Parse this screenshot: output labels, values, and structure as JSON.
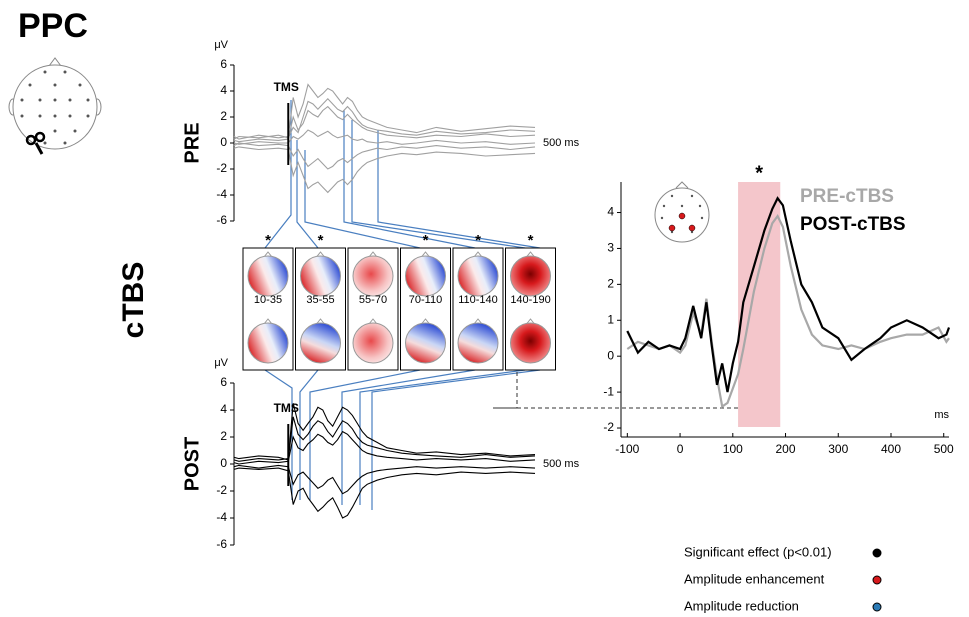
{
  "panel_label": "PPC",
  "condition_label": "cTBS",
  "topomaps": [
    {
      "window": "10-35",
      "significance": "*"
    },
    {
      "window": "35-55",
      "significance": "*"
    },
    {
      "window": "55-70"
    },
    {
      "window": "70-110",
      "significance": "*"
    },
    {
      "window": "110-140",
      "significance": "*"
    },
    {
      "window": "140-190",
      "significance": "*"
    }
  ],
  "legend": [
    {
      "label": "Significant effect (p<0.01)",
      "color": "#000000"
    },
    {
      "label": "Amplitude enhancement",
      "color": "#d7191c"
    },
    {
      "label": "Amplitude reduction",
      "color": "#2c7bb6"
    }
  ],
  "chart_data": [
    {
      "type": "line",
      "label": "PRE",
      "ylabel": "μV",
      "xlabel": "500 ms",
      "color": "#a0a0a0",
      "annotation": {
        "text": "TMS",
        "x": 0
      },
      "xlim": [
        -110,
        500
      ],
      "ylim": [
        -6,
        6
      ],
      "yticks": [
        -6,
        -4,
        -2,
        0,
        2,
        4,
        6
      ],
      "x": [
        -110,
        -100,
        -60,
        -20,
        0,
        10,
        20,
        30,
        40,
        50,
        60,
        70,
        80,
        90,
        100,
        110,
        120,
        130,
        140,
        150,
        160,
        180,
        200,
        230,
        260,
        300,
        350,
        400,
        450,
        500
      ],
      "series": [
        {
          "values": [
            0.5,
            0.3,
            0.6,
            0.4,
            0.5,
            3.5,
            2.0,
            3.0,
            4.5,
            4.0,
            3.5,
            3.8,
            4.2,
            4.0,
            3.5,
            3.0,
            3.5,
            3.2,
            2.5,
            2.0,
            1.8,
            1.5,
            1.2,
            1.0,
            0.8,
            1.2,
            0.9,
            1.1,
            1.3,
            1.2
          ]
        },
        {
          "values": [
            0.2,
            0.1,
            0.3,
            0.2,
            0.3,
            2.0,
            1.0,
            1.5,
            2.5,
            2.2,
            2.0,
            2.5,
            2.8,
            2.4,
            2.0,
            1.8,
            2.2,
            1.8,
            1.5,
            1.2,
            1.0,
            0.8,
            0.6,
            0.5,
            0.4,
            0.6,
            0.5,
            0.7,
            0.5,
            0.6
          ]
        },
        {
          "values": [
            0.0,
            -0.1,
            0.1,
            0.0,
            0.0,
            0.5,
            0.3,
            0.6,
            1.0,
            0.8,
            0.5,
            0.7,
            0.9,
            0.6,
            0.4,
            0.5,
            0.6,
            0.3,
            0.2,
            0.3,
            0.1,
            0.0,
            0.1,
            -0.1,
            0.0,
            0.2,
            0.0,
            0.1,
            -0.1,
            0.0
          ]
        },
        {
          "values": [
            -0.2,
            0.0,
            -0.2,
            -0.1,
            -0.2,
            -1.0,
            -0.5,
            -1.2,
            -1.8,
            -1.5,
            -1.2,
            -1.6,
            -2.0,
            -1.8,
            -1.4,
            -1.2,
            -1.5,
            -1.2,
            -0.9,
            -0.7,
            -0.6,
            -0.4,
            -0.5,
            -0.3,
            -0.4,
            -0.2,
            -0.4,
            -0.3,
            -0.5,
            -0.3
          ]
        },
        {
          "values": [
            -0.4,
            -0.3,
            -0.5,
            -0.4,
            -0.5,
            -2.5,
            -1.5,
            -2.5,
            -3.5,
            -3.2,
            -3.0,
            -3.4,
            -3.8,
            -3.4,
            -3.0,
            -2.8,
            -3.2,
            -2.8,
            -2.2,
            -1.8,
            -1.5,
            -1.2,
            -1.0,
            -0.8,
            -0.9,
            -0.7,
            -0.8,
            -1.0,
            -0.9,
            -0.8
          ]
        },
        {
          "values": [
            0.3,
            0.5,
            0.4,
            0.6,
            0.4,
            1.2,
            0.8,
            2.0,
            3.2,
            3.0,
            2.6,
            3.0,
            3.4,
            3.0,
            2.6,
            2.4,
            2.8,
            2.4,
            1.8,
            1.4,
            1.2,
            1.0,
            0.9,
            0.7,
            0.6,
            0.9,
            0.7,
            0.8,
            1.0,
            0.9
          ]
        }
      ]
    },
    {
      "type": "line",
      "label": "POST",
      "ylabel": "μV",
      "xlabel": "500 ms",
      "color": "#000000",
      "annotation": {
        "text": "TMS",
        "x": 0
      },
      "xlim": [
        -110,
        500
      ],
      "ylim": [
        -6,
        6
      ],
      "yticks": [
        -6,
        -4,
        -2,
        0,
        2,
        4,
        6
      ],
      "x": [
        -110,
        -100,
        -60,
        -20,
        0,
        10,
        20,
        30,
        40,
        50,
        60,
        70,
        80,
        90,
        100,
        110,
        120,
        130,
        140,
        150,
        160,
        180,
        200,
        230,
        260,
        300,
        350,
        400,
        450,
        500
      ],
      "series": [
        {
          "values": [
            0.3,
            0.2,
            0.4,
            0.3,
            0.4,
            4.5,
            3.0,
            2.5,
            3.0,
            3.5,
            4.2,
            4.0,
            3.2,
            2.8,
            3.5,
            4.2,
            4.0,
            3.6,
            3.0,
            2.4,
            2.0,
            1.6,
            1.2,
            1.0,
            0.8,
            0.9,
            0.7,
            0.8,
            0.6,
            0.7
          ]
        },
        {
          "values": [
            0.1,
            0.0,
            0.2,
            0.1,
            0.2,
            2.0,
            1.2,
            1.0,
            1.5,
            1.8,
            2.2,
            2.0,
            1.6,
            1.4,
            1.8,
            2.4,
            2.2,
            1.8,
            1.4,
            1.0,
            0.8,
            0.6,
            0.5,
            0.4,
            0.3,
            0.4,
            0.3,
            0.4,
            0.2,
            0.3
          ]
        },
        {
          "values": [
            -0.2,
            -0.1,
            -0.3,
            -0.1,
            -0.2,
            -1.5,
            -0.8,
            -0.6,
            -1.0,
            -1.4,
            -1.8,
            -1.6,
            -1.2,
            -1.0,
            -1.6,
            -2.2,
            -2.0,
            -1.6,
            -1.2,
            -0.9,
            -0.7,
            -0.5,
            -0.4,
            -0.3,
            -0.2,
            -0.3,
            -0.2,
            -0.3,
            -0.2,
            -0.3
          ]
        },
        {
          "values": [
            -0.4,
            -0.3,
            -0.4,
            -0.3,
            -0.5,
            -3.0,
            -2.0,
            -1.8,
            -2.5,
            -3.0,
            -3.5,
            -3.2,
            -2.8,
            -2.5,
            -3.2,
            -4.0,
            -3.8,
            -3.2,
            -2.5,
            -1.8,
            -1.5,
            -1.2,
            -1.0,
            -0.8,
            -0.7,
            -0.8,
            -0.6,
            -0.7,
            -0.6,
            -0.7
          ]
        },
        {
          "values": [
            0.5,
            0.4,
            0.6,
            0.5,
            0.3,
            3.5,
            2.2,
            1.8,
            2.2,
            2.8,
            3.2,
            3.0,
            2.4,
            2.0,
            2.6,
            3.2,
            3.0,
            2.6,
            2.0,
            1.6,
            1.4,
            1.2,
            1.0,
            0.8,
            0.7,
            0.6,
            0.5,
            0.7,
            0.5,
            0.6
          ]
        }
      ]
    },
    {
      "type": "line",
      "xlabel": "ms",
      "highlight": {
        "range": [
          110,
          190
        ],
        "color": "#f4c6cb",
        "label": "*"
      },
      "xlim": [
        -112,
        510
      ],
      "ylim": [
        -2.25,
        4.85
      ],
      "xticks": [
        -100,
        0,
        100,
        200,
        300,
        400,
        500
      ],
      "yticks": [
        -2,
        -1,
        0,
        1,
        2,
        3,
        4
      ],
      "x": [
        -100,
        -80,
        -60,
        -40,
        -20,
        0,
        10,
        25,
        40,
        50,
        60,
        70,
        80,
        90,
        100,
        110,
        120,
        140,
        160,
        175,
        185,
        195,
        210,
        230,
        250,
        270,
        300,
        325,
        350,
        380,
        400,
        430,
        460,
        490,
        505,
        510
      ],
      "series": [
        {
          "name": "PRE-cTBS",
          "color": "#a8a8a8",
          "values": [
            0.2,
            0.4,
            0.3,
            0.2,
            0.3,
            0.1,
            0.3,
            1.2,
            0.6,
            1.6,
            0.4,
            -0.6,
            -1.4,
            -1.3,
            -0.9,
            -0.5,
            0.2,
            1.8,
            3.0,
            3.7,
            3.9,
            3.6,
            2.5,
            1.3,
            0.6,
            0.3,
            0.2,
            0.3,
            0.2,
            0.4,
            0.5,
            0.6,
            0.6,
            0.8,
            0.4,
            0.5
          ]
        },
        {
          "name": "POST-cTBS",
          "color": "#000000",
          "values": [
            0.7,
            0.1,
            0.4,
            0.2,
            0.3,
            0.2,
            0.5,
            1.4,
            0.5,
            1.5,
            0.3,
            -0.8,
            -0.2,
            -1.0,
            -0.2,
            0.4,
            1.5,
            2.5,
            3.5,
            4.1,
            4.4,
            4.2,
            3.2,
            2.0,
            1.5,
            0.8,
            0.5,
            -0.1,
            0.2,
            0.5,
            0.8,
            1.0,
            0.8,
            0.5,
            0.6,
            0.8
          ]
        }
      ]
    }
  ]
}
